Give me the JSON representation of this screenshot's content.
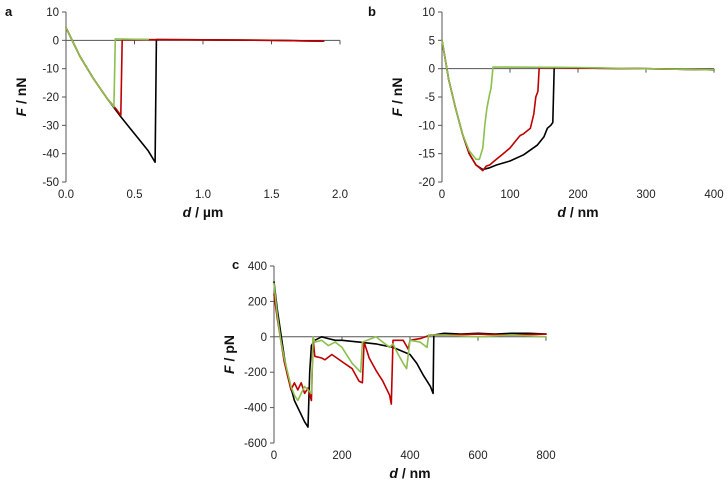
{
  "colors": {
    "black": "#000000",
    "red": "#c00000",
    "green": "#8cbf4d"
  },
  "chart_data": [
    {
      "panel": "a",
      "type": "line",
      "xlabel_var": "d",
      "xlabel_unit": " / µm",
      "ylabel_var": "F",
      "ylabel_unit": " / nN",
      "xlim": [
        0,
        2.0
      ],
      "ylim": [
        -50,
        10
      ],
      "xticks": [
        "0.0",
        "0.5",
        "1.0",
        "1.5",
        "2.0"
      ],
      "xtick_values": [
        0,
        0.5,
        1.0,
        1.5,
        2.0
      ],
      "yticks": [
        "10",
        "0",
        "-10",
        "-20",
        "-30",
        "-40",
        "-50"
      ],
      "ytick_values": [
        10,
        0,
        -10,
        -20,
        -30,
        -40,
        -50
      ],
      "series": [
        {
          "color": "#000000",
          "x": [
            0,
            0.1,
            0.2,
            0.3,
            0.4,
            0.5,
            0.6,
            0.65,
            0.66,
            1.0,
            1.5,
            1.88
          ],
          "y": [
            4.5,
            -5.5,
            -13.5,
            -20.5,
            -27,
            -33,
            -39,
            -43,
            0.3,
            0.2,
            0,
            -0.3
          ]
        },
        {
          "color": "#c00000",
          "x": [
            0,
            0.1,
            0.2,
            0.3,
            0.37,
            0.4,
            0.41,
            1.0,
            1.5,
            1.88
          ],
          "y": [
            4.5,
            -5.5,
            -13.5,
            -20.5,
            -24.5,
            -26.5,
            0.3,
            0.2,
            0,
            -0.3
          ]
        },
        {
          "color": "#8cbf4d",
          "x": [
            0,
            0.1,
            0.2,
            0.3,
            0.35,
            0.36,
            0.6
          ],
          "y": [
            4.5,
            -5.5,
            -13.5,
            -20.5,
            -23.5,
            0.5,
            0.3
          ]
        }
      ]
    },
    {
      "panel": "b",
      "type": "line",
      "xlabel_var": "d",
      "xlabel_unit": " / nm",
      "ylabel_var": "F",
      "ylabel_unit": " / nN",
      "xlim": [
        0,
        400
      ],
      "ylim": [
        -20,
        10
      ],
      "xticks": [
        "0",
        "100",
        "200",
        "300",
        "400"
      ],
      "xtick_values": [
        0,
        100,
        200,
        300,
        400
      ],
      "yticks": [
        "10",
        "5",
        "0",
        "-5",
        "-10",
        "-15",
        "-20"
      ],
      "ytick_values": [
        10,
        5,
        0,
        -5,
        -10,
        -15,
        -20
      ],
      "series": [
        {
          "color": "#000000",
          "x": [
            0,
            10,
            20,
            30,
            40,
            50,
            60,
            70,
            80,
            100,
            120,
            140,
            150,
            155,
            160,
            163,
            165,
            200,
            300,
            400
          ],
          "y": [
            5,
            -2,
            -7,
            -11.5,
            -15,
            -17,
            -17.8,
            -17.5,
            -17,
            -16.3,
            -15.2,
            -13.5,
            -12,
            -10.5,
            -10,
            -9.5,
            0.2,
            0.1,
            0,
            -0.2
          ]
        },
        {
          "color": "#c00000",
          "x": [
            0,
            10,
            20,
            30,
            40,
            50,
            55,
            60,
            65,
            70,
            80,
            90,
            100,
            110,
            115,
            120,
            130,
            135,
            138,
            141,
            143,
            200,
            300,
            400
          ],
          "y": [
            5,
            -2,
            -7,
            -11.5,
            -15,
            -17,
            -17.5,
            -18,
            -17.2,
            -17,
            -16,
            -15,
            -14,
            -12.5,
            -11.8,
            -11.5,
            -10.5,
            -8,
            -5,
            -4,
            0.2,
            0.1,
            0,
            -0.2
          ]
        },
        {
          "color": "#8cbf4d",
          "x": [
            0,
            10,
            20,
            30,
            40,
            50,
            55,
            60,
            63,
            66,
            70,
            72,
            75,
            200,
            300,
            400
          ],
          "y": [
            5,
            -2,
            -7,
            -11.5,
            -14.5,
            -16,
            -16,
            -14,
            -10,
            -7,
            -4.5,
            -3.5,
            0.3,
            0.2,
            0,
            -0.2
          ]
        }
      ]
    },
    {
      "panel": "c",
      "type": "line",
      "xlabel_var": "d",
      "xlabel_unit": " / nm",
      "ylabel_var": "F",
      "ylabel_unit": " / pN",
      "xlim": [
        0,
        800
      ],
      "ylim": [
        -600,
        400
      ],
      "xticks": [
        "0",
        "200",
        "400",
        "600",
        "800"
      ],
      "xtick_values": [
        0,
        200,
        400,
        600,
        800
      ],
      "yticks": [
        "400",
        "200",
        "0",
        "-200",
        "-400",
        "-600"
      ],
      "ytick_values": [
        400,
        200,
        0,
        -200,
        -400,
        -600
      ],
      "series": [
        {
          "color": "#000000",
          "x": [
            0,
            10,
            20,
            30,
            40,
            50,
            60,
            70,
            80,
            90,
            100,
            105,
            110,
            120,
            140,
            160,
            180,
            200,
            250,
            300,
            350,
            400,
            420,
            440,
            460,
            468,
            470,
            500,
            550,
            600,
            650,
            700,
            750,
            800
          ],
          "y": [
            310,
            150,
            20,
            -110,
            -220,
            -290,
            -360,
            -400,
            -440,
            -480,
            -510,
            -200,
            -50,
            -20,
            0,
            -10,
            -20,
            -20,
            -30,
            -40,
            -60,
            -100,
            -150,
            -220,
            -280,
            -320,
            10,
            20,
            15,
            20,
            15,
            20,
            20,
            15
          ]
        },
        {
          "color": "#c00000",
          "x": [
            0,
            10,
            20,
            30,
            40,
            50,
            60,
            70,
            80,
            90,
            100,
            110,
            115,
            120,
            140,
            150,
            170,
            200,
            230,
            250,
            260,
            265,
            280,
            300,
            320,
            340,
            345,
            350,
            380,
            395,
            400,
            430,
            460,
            500,
            600,
            700,
            800
          ],
          "y": [
            240,
            100,
            -20,
            -140,
            -220,
            -300,
            -260,
            -300,
            -260,
            -320,
            -290,
            -360,
            -10,
            -110,
            -120,
            -130,
            -100,
            -140,
            -180,
            -250,
            -260,
            -30,
            -120,
            -190,
            -250,
            -330,
            -380,
            -20,
            -20,
            -70,
            -20,
            -10,
            10,
            10,
            15,
            10,
            15
          ]
        },
        {
          "color": "#8cbf4d",
          "x": [
            0,
            10,
            20,
            30,
            40,
            50,
            60,
            70,
            80,
            90,
            100,
            110,
            115,
            120,
            140,
            160,
            180,
            200,
            230,
            255,
            260,
            300,
            340,
            350,
            360,
            380,
            390,
            395,
            400,
            430,
            450,
            455,
            500,
            600,
            700,
            800
          ],
          "y": [
            300,
            120,
            -20,
            -120,
            -200,
            -280,
            -330,
            -360,
            -320,
            -280,
            -300,
            -320,
            0,
            -30,
            -20,
            -50,
            -30,
            -60,
            -150,
            -200,
            -30,
            0,
            -60,
            -40,
            -80,
            -150,
            -180,
            -100,
            -20,
            -30,
            -60,
            10,
            10,
            0,
            10,
            0
          ]
        }
      ]
    }
  ]
}
